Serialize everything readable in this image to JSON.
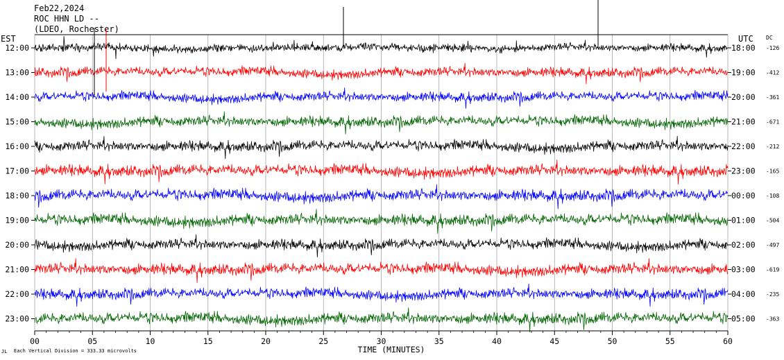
{
  "header": {
    "date": "Feb22,2024",
    "station": "ROC HHN LD --",
    "network": "(LDEO, Rochester)"
  },
  "left_axis_label": "EST",
  "right_axis_label": "UTC",
  "dc_label": "DC",
  "footer": {
    "scale_note": "Each Vertical Division =  333.33 microvolts",
    "corner_mark": "JL"
  },
  "chart_data": {
    "type": "line",
    "xlabel": "TIME (MINUTES)",
    "x_ticks": [
      "00",
      "05",
      "10",
      "15",
      "20",
      "25",
      "30",
      "35",
      "40",
      "45",
      "50",
      "55",
      "60"
    ],
    "xlim": [
      0,
      60
    ],
    "rows": [
      {
        "est": "12:00",
        "utc": "18:00",
        "dc": "-126",
        "color": "#000000",
        "amp": 9
      },
      {
        "est": "13:00",
        "utc": "19:00",
        "dc": "-412",
        "color": "#ff0000",
        "amp": 11
      },
      {
        "est": "14:00",
        "utc": "20:00",
        "dc": "-361",
        "color": "#0000ff",
        "amp": 11
      },
      {
        "est": "15:00",
        "utc": "21:00",
        "dc": "-671",
        "color": "#006400",
        "amp": 12
      },
      {
        "est": "16:00",
        "utc": "22:00",
        "dc": "-212",
        "color": "#000000",
        "amp": 12
      },
      {
        "est": "17:00",
        "utc": "23:00",
        "dc": "-165",
        "color": "#ff0000",
        "amp": 13
      },
      {
        "est": "18:00",
        "utc": "00:00",
        "dc": "-108",
        "color": "#0000ff",
        "amp": 13
      },
      {
        "est": "19:00",
        "utc": "01:00",
        "dc": "-504",
        "color": "#006400",
        "amp": 13
      },
      {
        "est": "20:00",
        "utc": "02:00",
        "dc": "-497",
        "color": "#000000",
        "amp": 12
      },
      {
        "est": "21:00",
        "utc": "03:00",
        "dc": "-619",
        "color": "#ff0000",
        "amp": 13
      },
      {
        "est": "22:00",
        "utc": "04:00",
        "dc": "-235",
        "color": "#0000ff",
        "amp": 12
      },
      {
        "est": "23:00",
        "utc": "05:00",
        "dc": "-363",
        "color": "#006400",
        "amp": 13
      }
    ]
  }
}
